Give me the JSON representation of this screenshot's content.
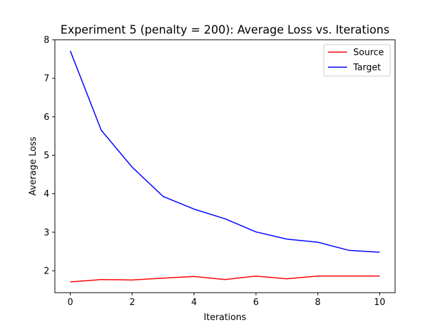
{
  "chart_data": {
    "type": "line",
    "title": "Experiment 5 (penalty = 200): Average Loss vs. Iterations",
    "xlabel": "Iterations",
    "ylabel": "Average Loss",
    "x": [
      0,
      1,
      2,
      3,
      4,
      5,
      6,
      7,
      8,
      9,
      10
    ],
    "xlim": [
      -0.5,
      10.5
    ],
    "ylim": [
      1.43,
      8.0
    ],
    "xticks": [
      0,
      2,
      4,
      6,
      8,
      10
    ],
    "yticks": [
      2,
      3,
      4,
      5,
      6,
      7,
      8
    ],
    "grid": false,
    "legend_position": "top-right",
    "series": [
      {
        "name": "Source",
        "color": "#ff0000",
        "values": [
          1.71,
          1.77,
          1.76,
          1.81,
          1.85,
          1.77,
          1.86,
          1.79,
          1.86,
          1.86,
          1.86
        ]
      },
      {
        "name": "Target",
        "color": "#0000ff",
        "values": [
          7.71,
          5.65,
          4.69,
          3.93,
          3.6,
          3.35,
          3.01,
          2.82,
          2.74,
          2.53,
          2.48
        ]
      }
    ]
  }
}
